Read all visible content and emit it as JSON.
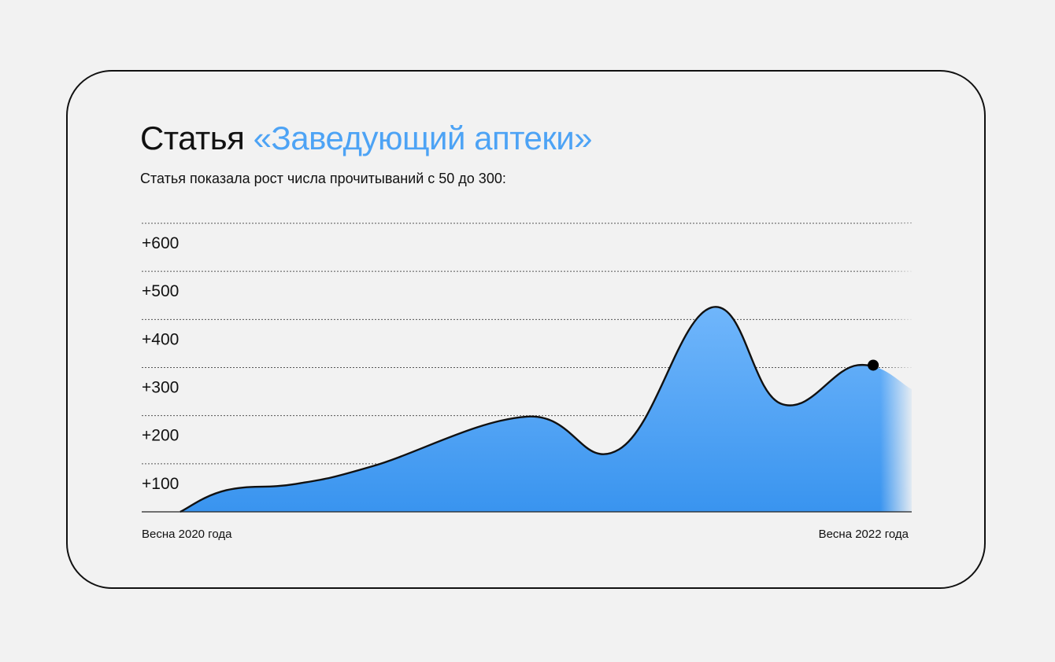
{
  "header": {
    "title_prefix": "Статья",
    "title_accent": "«Заведующий аптеки»",
    "subtitle": "Статья показала рост числа прочитываний с 50 до 300:"
  },
  "colors": {
    "accent": "#4da3f5",
    "fill_top": "#70b6fb",
    "fill_bottom": "#3994ef",
    "line": "#111111",
    "grid": "#555555"
  },
  "chart_data": {
    "type": "area",
    "x_start_label": "Весна 2020 года",
    "x_end_label": "Весна 2022 года",
    "y_tick_labels": [
      "+100",
      "+200",
      "+300",
      "+400",
      "+500",
      "+600"
    ],
    "y_ticks": [
      100,
      200,
      300,
      400,
      500,
      600
    ],
    "ylim": [
      0,
      600
    ],
    "xlim": [
      0,
      100
    ],
    "grid": "dotted horizontal",
    "series": [
      {
        "points": [
          {
            "x": 5,
            "y": 0
          },
          {
            "x": 11,
            "y": 45
          },
          {
            "x": 20,
            "y": 58
          },
          {
            "x": 30,
            "y": 95
          },
          {
            "x": 50,
            "y": 198
          },
          {
            "x": 62,
            "y": 130
          },
          {
            "x": 74,
            "y": 425
          },
          {
            "x": 83,
            "y": 225
          },
          {
            "x": 93,
            "y": 305
          },
          {
            "x": 100,
            "y": 255
          }
        ],
        "marker": {
          "x": 95,
          "y": 305
        }
      }
    ]
  }
}
